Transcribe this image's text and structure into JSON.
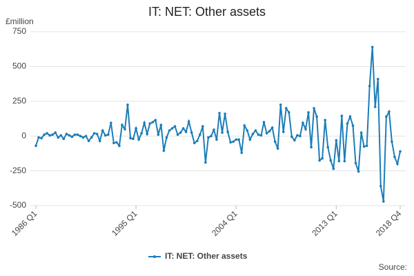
{
  "chart_data": {
    "type": "line",
    "title": "IT: NET: Other assets",
    "y_label": "£million",
    "source": "Source:",
    "categories": [
      "1986 Q1",
      null,
      null,
      null,
      null,
      null,
      null,
      null,
      null,
      null,
      null,
      null,
      null,
      null,
      null,
      null,
      null,
      null,
      null,
      null,
      null,
      null,
      null,
      null,
      null,
      null,
      null,
      null,
      null,
      null,
      null,
      null,
      null,
      null,
      null,
      null,
      "1995 Q1",
      null,
      null,
      null,
      null,
      null,
      null,
      null,
      null,
      null,
      null,
      null,
      null,
      null,
      null,
      null,
      null,
      null,
      null,
      null,
      null,
      null,
      null,
      null,
      null,
      null,
      null,
      null,
      null,
      null,
      null,
      null,
      null,
      null,
      null,
      null,
      "2004 Q1",
      null,
      null,
      null,
      null,
      null,
      null,
      null,
      null,
      null,
      null,
      null,
      null,
      null,
      null,
      null,
      null,
      null,
      null,
      null,
      null,
      null,
      null,
      null,
      null,
      null,
      null,
      null,
      null,
      null,
      null,
      null,
      null,
      null,
      null,
      null,
      "2013 Q1",
      null,
      null,
      null,
      null,
      null,
      null,
      null,
      null,
      null,
      null,
      null,
      null,
      null,
      null,
      null,
      null,
      null,
      null,
      null,
      null,
      null,
      null,
      "2018 Q4"
    ],
    "series": [
      {
        "name": "IT: NET: Other assets",
        "color": "#1b7db8",
        "values": [
          -70,
          -10,
          -15,
          10,
          20,
          5,
          10,
          25,
          -10,
          5,
          -20,
          15,
          5,
          -5,
          10,
          10,
          0,
          -10,
          0,
          -35,
          -10,
          20,
          15,
          -35,
          40,
          5,
          10,
          95,
          -50,
          -45,
          -70,
          80,
          50,
          225,
          -15,
          -20,
          55,
          -25,
          20,
          95,
          15,
          90,
          100,
          115,
          10,
          80,
          -105,
          -10,
          40,
          55,
          70,
          10,
          25,
          55,
          30,
          105,
          25,
          -50,
          -35,
          10,
          70,
          -190,
          -10,
          0,
          45,
          -25,
          165,
          25,
          160,
          30,
          -45,
          -40,
          -25,
          -25,
          -120,
          75,
          40,
          -25,
          15,
          40,
          10,
          5,
          100,
          20,
          35,
          60,
          -40,
          -90,
          225,
          30,
          200,
          170,
          -5,
          -30,
          5,
          0,
          95,
          50,
          170,
          -80,
          200,
          140,
          -175,
          -160,
          115,
          -80,
          -175,
          -235,
          -30,
          -180,
          145,
          -180,
          90,
          140,
          75,
          -195,
          -255,
          25,
          -75,
          -70,
          360,
          640,
          210,
          410,
          -360,
          -470,
          140,
          175,
          -40,
          -150,
          -200,
          -110
        ]
      }
    ],
    "ylim": [
      -500,
      750
    ],
    "yticks": [
      -500,
      -250,
      0,
      250,
      500,
      750
    ],
    "grid": true
  }
}
